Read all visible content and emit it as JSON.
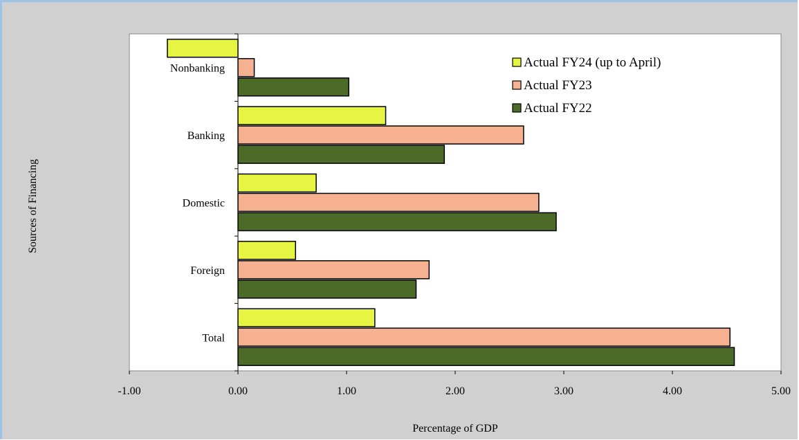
{
  "chart_data": {
    "type": "bar",
    "orientation": "horizontal",
    "categories": [
      "Nonbanking",
      "Banking",
      "Domestic",
      "Foreign",
      "Total"
    ],
    "series": [
      {
        "name": "Actual FY24 (up to April)",
        "color": "#e6f542",
        "values": [
          -0.65,
          1.36,
          0.72,
          0.53,
          1.26
        ]
      },
      {
        "name": "Actual FY23",
        "color": "#f6b190",
        "values": [
          0.15,
          2.63,
          2.77,
          1.76,
          4.53
        ]
      },
      {
        "name": "Actual FY22",
        "color": "#4d6b28",
        "values": [
          1.02,
          1.9,
          2.93,
          1.64,
          4.57
        ]
      }
    ],
    "xlabel": "Percentage of  GDP",
    "ylabel": "Sources of Financing",
    "xlim": [
      -1.0,
      5.0
    ],
    "xticks": [
      "-1.00",
      "0.00",
      "1.00",
      "2.00",
      "3.00",
      "4.00",
      "5.00"
    ],
    "grid": false,
    "legend_position": "top-right"
  }
}
